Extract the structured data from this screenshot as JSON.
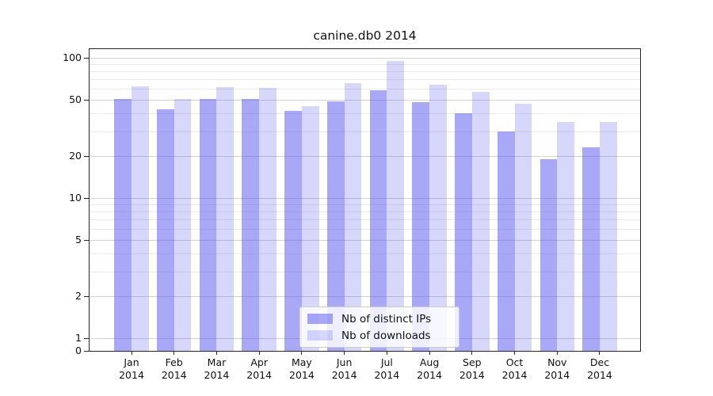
{
  "title": "canine.db0 2014",
  "chart_data": {
    "type": "bar",
    "title": "canine.db0 2014",
    "categories": [
      "Jan 2014",
      "Feb 2014",
      "Mar 2014",
      "Apr 2014",
      "May 2014",
      "Jun 2014",
      "Jul 2014",
      "Aug 2014",
      "Sep 2014",
      "Oct 2014",
      "Nov 2014",
      "Dec 2014"
    ],
    "series": [
      {
        "name": "Nb of distinct IPs",
        "values": [
          51,
          43,
          51,
          51,
          42,
          49,
          59,
          48,
          40,
          30,
          19,
          23
        ]
      },
      {
        "name": "Nb of downloads",
        "values": [
          63,
          51,
          62,
          61,
          45,
          66,
          95,
          64,
          57,
          47,
          35,
          35
        ]
      }
    ],
    "yscale": "symlog",
    "yticks": [
      0,
      1,
      2,
      5,
      10,
      20,
      50,
      100
    ],
    "ylim": [
      0,
      115
    ],
    "xlabel": "",
    "ylabel": "",
    "grid": "horizontal, log minor gridlines",
    "legend_position": "lower center inside plot"
  },
  "colors": {
    "series_fill": [
      "rgba(82,82,240,0.5)",
      "rgba(82,82,240,0.23)"
    ],
    "series_hex_on_white": [
      "#a8a8f7",
      "#d8d8f9"
    ],
    "grid_major": "#d2d2d2",
    "grid_minor": "#e9e9e9",
    "axis": "#262626",
    "text": "#1a1a1a",
    "legend_border": "#cccccc",
    "legend_bg": "rgba(255,255,255,0.8)"
  }
}
